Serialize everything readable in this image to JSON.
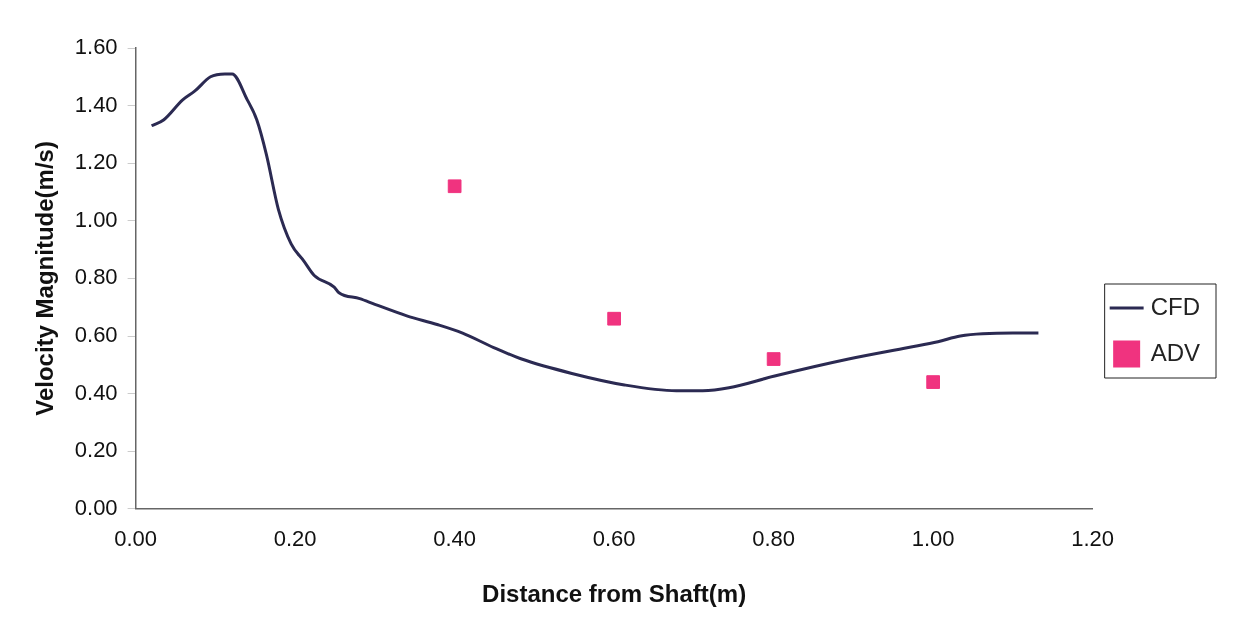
{
  "chart_data": {
    "type": "line",
    "xlabel": "Distance from Shaft(m)",
    "ylabel": "Velocity Magnitude(m/s)",
    "xlim": [
      0,
      1.2
    ],
    "xticks": [
      {
        "value": 0,
        "label": "0.00"
      },
      {
        "value": 0.2,
        "label": "0.20"
      },
      {
        "value": 0.4,
        "label": "0.40"
      },
      {
        "value": 0.6,
        "label": "0.60"
      },
      {
        "value": 0.8,
        "label": "0.80"
      },
      {
        "value": 1,
        "label": "1.00"
      },
      {
        "value": 1.2,
        "label": "1.20"
      }
    ],
    "ylim": [
      0,
      1.6
    ],
    "yticks": [
      {
        "value": 0,
        "label": "0.00"
      },
      {
        "value": 0.2,
        "label": "0.20"
      },
      {
        "value": 0.4,
        "label": "0.40"
      },
      {
        "value": 0.6,
        "label": "0.60"
      },
      {
        "value": 0.8,
        "label": "0.80"
      },
      {
        "value": 1,
        "label": "1.00"
      },
      {
        "value": 1.2,
        "label": "1.20"
      },
      {
        "value": 1.4,
        "label": "1.40"
      },
      {
        "value": 1.6,
        "label": "1.60"
      }
    ],
    "grid": false,
    "legend": "right",
    "series": [
      {
        "name": "CFD",
        "color": "#2b2a52",
        "marker": "none",
        "line_style": "solid",
        "x": [
          0.02,
          0.035,
          0.059,
          0.074,
          0.094,
          0.112,
          0.121,
          0.14,
          0.152,
          0.164,
          0.179,
          0.195,
          0.211,
          0.224,
          0.249,
          0.255,
          0.281,
          0.3,
          0.34,
          0.378,
          0.41,
          0.449,
          0.484,
          0.547,
          0.613,
          0.678,
          0.711,
          0.744,
          0.8,
          0.894,
          0.969,
          1.006,
          1.034,
          1.1,
          1.132
        ],
        "values": [
          1.33,
          1.35,
          1.42,
          1.45,
          1.5,
          1.51,
          1.51,
          1.42,
          1.35,
          1.23,
          1.04,
          0.92,
          0.86,
          0.81,
          0.77,
          0.75,
          0.73,
          0.71,
          0.67,
          0.64,
          0.61,
          0.56,
          0.52,
          0.47,
          0.43,
          0.41,
          0.41,
          0.42,
          0.46,
          0.52,
          0.56,
          0.58,
          0.6,
          0.61,
          0.61
        ]
      },
      {
        "name": "ADV",
        "type": "scatter",
        "color": "#f0337f",
        "marker": "square",
        "x": [
          0.4,
          0.6,
          0.8,
          1.0
        ],
        "values": [
          1.12,
          0.66,
          0.52,
          0.44
        ]
      }
    ]
  }
}
